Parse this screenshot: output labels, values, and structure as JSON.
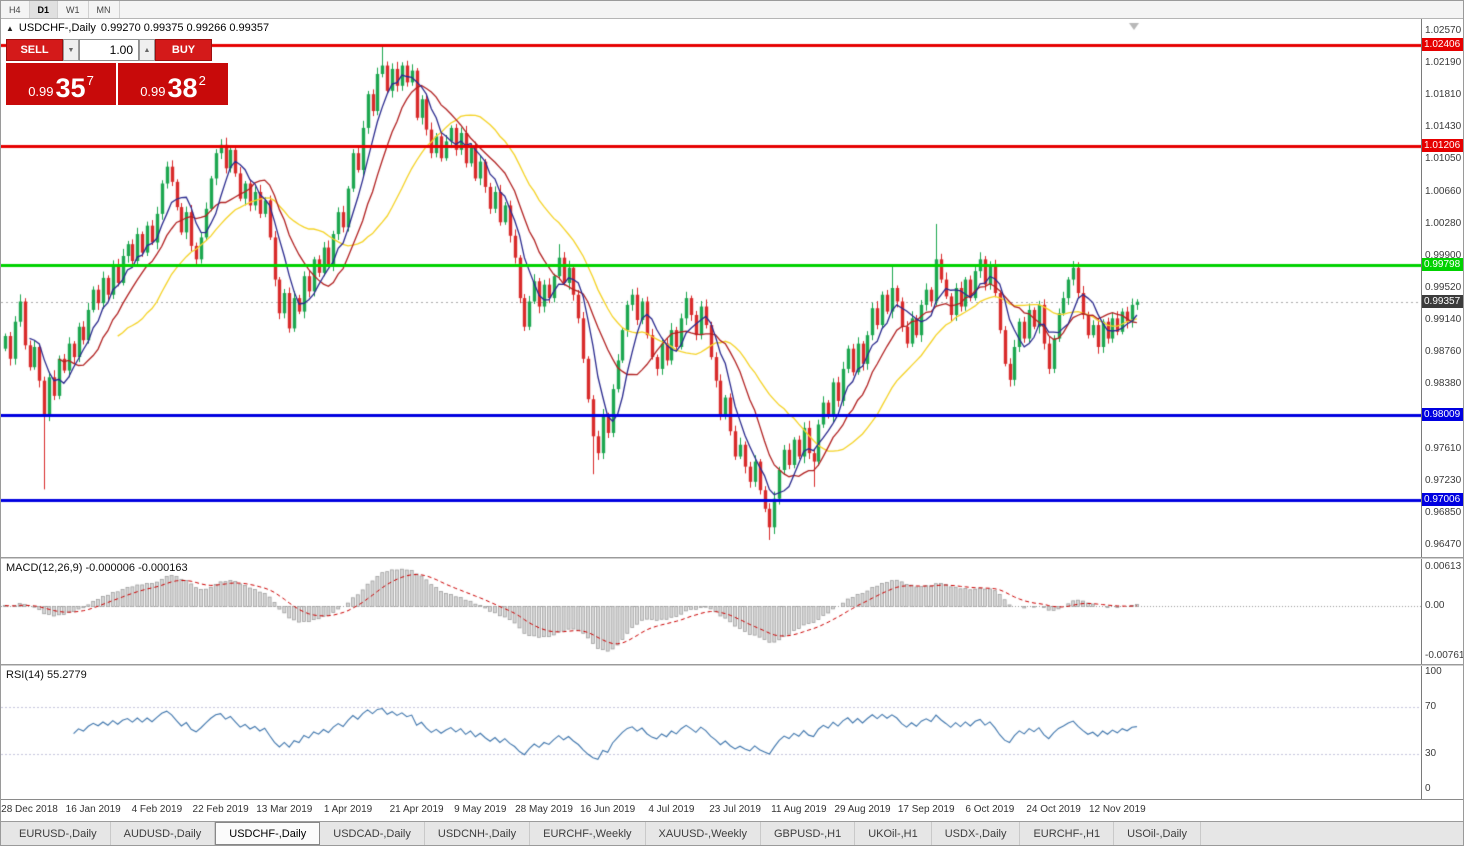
{
  "toolbar": {
    "timeframes": [
      "H4",
      "D1",
      "W1",
      "MN"
    ],
    "active_timeframe": "D1"
  },
  "chart_header": {
    "toggle_icon": "▲",
    "symbol": "USDCHF-,Daily",
    "ohlc": "0.99270 0.99375 0.99266 0.99357"
  },
  "order_panel": {
    "sell_label": "SELL",
    "buy_label": "BUY",
    "volume": "1.00",
    "spinner_up": "▲",
    "spinner_down": "▼",
    "bid": {
      "prefix": "0.99",
      "big": "35",
      "sup": "7",
      "full": "0.99357"
    },
    "ask": {
      "prefix": "0.99",
      "big": "38",
      "sup": "2",
      "full": "0.99382"
    }
  },
  "tabs": {
    "items": [
      {
        "label": "EURUSD-,Daily",
        "active": false
      },
      {
        "label": "AUDUSD-,Daily",
        "active": false
      },
      {
        "label": "USDCHF-,Daily",
        "active": true
      },
      {
        "label": "USDCAD-,Daily",
        "active": false
      },
      {
        "label": "USDCNH-,Daily",
        "active": false
      },
      {
        "label": "EURCHF-,Weekly",
        "active": false
      },
      {
        "label": "XAUUSD-,Weekly",
        "active": false
      },
      {
        "label": "GBPUSD-,H1",
        "active": false
      },
      {
        "label": "UKOil-,H1",
        "active": false
      },
      {
        "label": "USDX-,Daily",
        "active": false
      },
      {
        "label": "EURCHF-,H1",
        "active": false
      },
      {
        "label": "USOil-,Daily",
        "active": false
      }
    ]
  },
  "colors": {
    "candle_up": "#1DA750",
    "candle_down": "#D92B2B",
    "current_line": "#AAAAAA",
    "badge_current_bg": "#3C3C3C",
    "macd_hist_fill": "#D6D6D6",
    "macd_hist_stroke": "#9C9C9C",
    "macd_signal": "#CC0000",
    "rsi_line": "#3F76AD",
    "rsi_levels": "#C6C6DD",
    "hline_red": "#E60000",
    "hline_green": "#00D200",
    "hline_blue": "#0000E0"
  },
  "chart_data": {
    "type": "candlestick",
    "symbol": "USDCHF",
    "timeframe": "Daily",
    "title": "USDCHF-,Daily",
    "price_axis_ticks": [
      "1.02570",
      "1.02190",
      "1.01810",
      "1.01430",
      "1.01050",
      "1.00660",
      "1.00280",
      "0.99900",
      "0.99520",
      "0.99140",
      "0.98760",
      "0.98380",
      "0.97610",
      "0.97230",
      "0.96850",
      "0.96470"
    ],
    "price_axis_range": [
      0.9647,
      1.0257
    ],
    "current_price": 0.99357,
    "current_price_label": "0.99357",
    "hlines": [
      {
        "price": 1.02406,
        "label": "1.02406",
        "color": "#E60000",
        "width": 3
      },
      {
        "price": 1.01206,
        "label": "1.01206",
        "color": "#E60000",
        "width": 3
      },
      {
        "price": 0.99798,
        "label": "0.99798",
        "color": "#00D200",
        "width": 3
      },
      {
        "price": 0.98009,
        "label": "0.98009",
        "color": "#0000E0",
        "width": 3
      },
      {
        "price": 0.97006,
        "label": "0.97006",
        "color": "#0000E0",
        "width": 3
      }
    ],
    "x_labels": [
      {
        "label": "28 Dec 2018",
        "i": 5
      },
      {
        "label": "16 Jan 2019",
        "i": 18
      },
      {
        "label": "4 Feb 2019",
        "i": 31
      },
      {
        "label": "22 Feb 2019",
        "i": 44
      },
      {
        "label": "13 Mar 2019",
        "i": 57
      },
      {
        "label": "1 Apr 2019",
        "i": 70
      },
      {
        "label": "21 Apr 2019",
        "i": 84
      },
      {
        "label": "9 May 2019",
        "i": 97
      },
      {
        "label": "28 May 2019",
        "i": 110
      },
      {
        "label": "16 Jun 2019",
        "i": 123
      },
      {
        "label": "4 Jul 2019",
        "i": 136
      },
      {
        "label": "23 Jul 2019",
        "i": 149
      },
      {
        "label": "11 Aug 2019",
        "i": 162
      },
      {
        "label": "29 Aug 2019",
        "i": 175
      },
      {
        "label": "17 Sep 2019",
        "i": 188
      },
      {
        "label": "6 Oct 2019",
        "i": 201
      },
      {
        "label": "24 Oct 2019",
        "i": 214
      },
      {
        "label": "12 Nov 2019",
        "i": 227
      }
    ],
    "open_rule": "previous_close",
    "closes": [
      0.9895,
      0.9868,
      0.9912,
      0.9936,
      0.9884,
      0.9858,
      0.9882,
      0.9842,
      0.98,
      0.9846,
      0.9824,
      0.9868,
      0.9854,
      0.9886,
      0.987,
      0.9906,
      0.989,
      0.9926,
      0.995,
      0.9934,
      0.9964,
      0.9944,
      0.998,
      0.9958,
      0.999,
      1.0004,
      0.9984,
      1.0016,
      0.9994,
      1.0026,
      1.0006,
      1.004,
      1.0076,
      1.0096,
      1.0078,
      1.0048,
      1.0018,
      1.0042,
      1.0002,
      0.9986,
      1.0012,
      1.0046,
      1.0082,
      1.0112,
      1.0122,
      1.0094,
      1.0116,
      1.0088,
      1.0058,
      1.0076,
      1.005,
      1.0066,
      1.004,
      1.0056,
      1.0012,
      0.9962,
      0.9922,
      0.9946,
      0.9904,
      0.994,
      0.9924,
      0.9966,
      0.9948,
      0.9986,
      0.997,
      1.0,
      0.998,
      1.0016,
      1.0042,
      1.0024,
      1.007,
      1.0112,
      1.0092,
      1.0142,
      1.0182,
      1.0162,
      1.0206,
      1.0216,
      1.0186,
      1.0212,
      1.0192,
      1.0216,
      1.0196,
      1.021,
      1.0154,
      1.0176,
      1.014,
      1.0112,
      1.0132,
      1.0106,
      1.0126,
      1.0142,
      1.0116,
      1.0136,
      1.01,
      1.012,
      1.0082,
      1.0102,
      1.0072,
      1.0046,
      1.0066,
      1.003,
      1.005,
      1.0014,
      0.9988,
      0.994,
      0.9906,
      0.9936,
      0.996,
      0.993,
      0.9956,
      0.994,
      0.9966,
      0.9988,
      0.9958,
      0.9976,
      0.9944,
      0.9916,
      0.9868,
      0.982,
      0.9776,
      0.9756,
      0.98,
      0.978,
      0.9832,
      0.9866,
      0.9902,
      0.9932,
      0.9944,
      0.9914,
      0.9936,
      0.9896,
      0.987,
      0.9856,
      0.9886,
      0.9866,
      0.9902,
      0.9882,
      0.9916,
      0.994,
      0.992,
      0.9896,
      0.993,
      0.9908,
      0.987,
      0.9842,
      0.9802,
      0.9822,
      0.9782,
      0.9752,
      0.9766,
      0.974,
      0.9722,
      0.9746,
      0.9712,
      0.969,
      0.9668,
      0.9702,
      0.9736,
      0.976,
      0.9742,
      0.9772,
      0.9752,
      0.9786,
      0.9756,
      0.9746,
      0.979,
      0.9816,
      0.98,
      0.984,
      0.9818,
      0.9856,
      0.988,
      0.9852,
      0.9886,
      0.9862,
      0.9896,
      0.9928,
      0.9908,
      0.9944,
      0.9924,
      0.9952,
      0.9936,
      0.9906,
      0.9886,
      0.9916,
      0.9896,
      0.9932,
      0.995,
      0.9936,
      0.9986,
      0.9962,
      0.9942,
      0.992,
      0.9952,
      0.993,
      0.9962,
      0.994,
      0.9972,
      0.9986,
      0.9956,
      0.9978,
      0.9946,
      0.9902,
      0.9862,
      0.9843,
      0.9882,
      0.9912,
      0.9892,
      0.9926,
      0.9906,
      0.9932,
      0.9886,
      0.9856,
      0.9892,
      0.9922,
      0.994,
      0.9962,
      0.9976,
      0.9946,
      0.992,
      0.9896,
      0.9908,
      0.9882,
      0.9912,
      0.9892,
      0.9916,
      0.99,
      0.9924,
      0.9912,
      0.9932,
      0.99357
    ],
    "wick_overrides": {
      "8": {
        "l": 0.9713
      },
      "33": {
        "h": 1.0102
      },
      "44": {
        "h": 1.0128
      },
      "77": {
        "h": 1.024
      },
      "113": {
        "h": 1.0004
      },
      "120": {
        "l": 0.9731
      },
      "156": {
        "l": 0.9653
      },
      "165": {
        "l": 0.9716
      },
      "181": {
        "h": 0.9978
      },
      "190": {
        "h": 1.0028
      },
      "199": {
        "h": 0.9992
      },
      "218": {
        "h": 0.9984
      }
    },
    "moving_averages": [
      {
        "period": 24,
        "color": "#F5D327"
      },
      {
        "period": 12,
        "color": "#B22222"
      },
      {
        "period": 6,
        "color": "#2B2B8F"
      }
    ],
    "macd": {
      "label": "MACD(12,26,9) -0.000006 -0.000163",
      "fast": 12,
      "slow": 26,
      "signal": 9,
      "scale_max": "0.00613",
      "scale_zero": "0.00",
      "scale_min": "-0.007612"
    },
    "rsi": {
      "label": "RSI(14) 55.2779",
      "period": 14,
      "levels": [
        70,
        30
      ],
      "scale_ticks": [
        "100",
        "70",
        "30",
        "0"
      ]
    }
  }
}
